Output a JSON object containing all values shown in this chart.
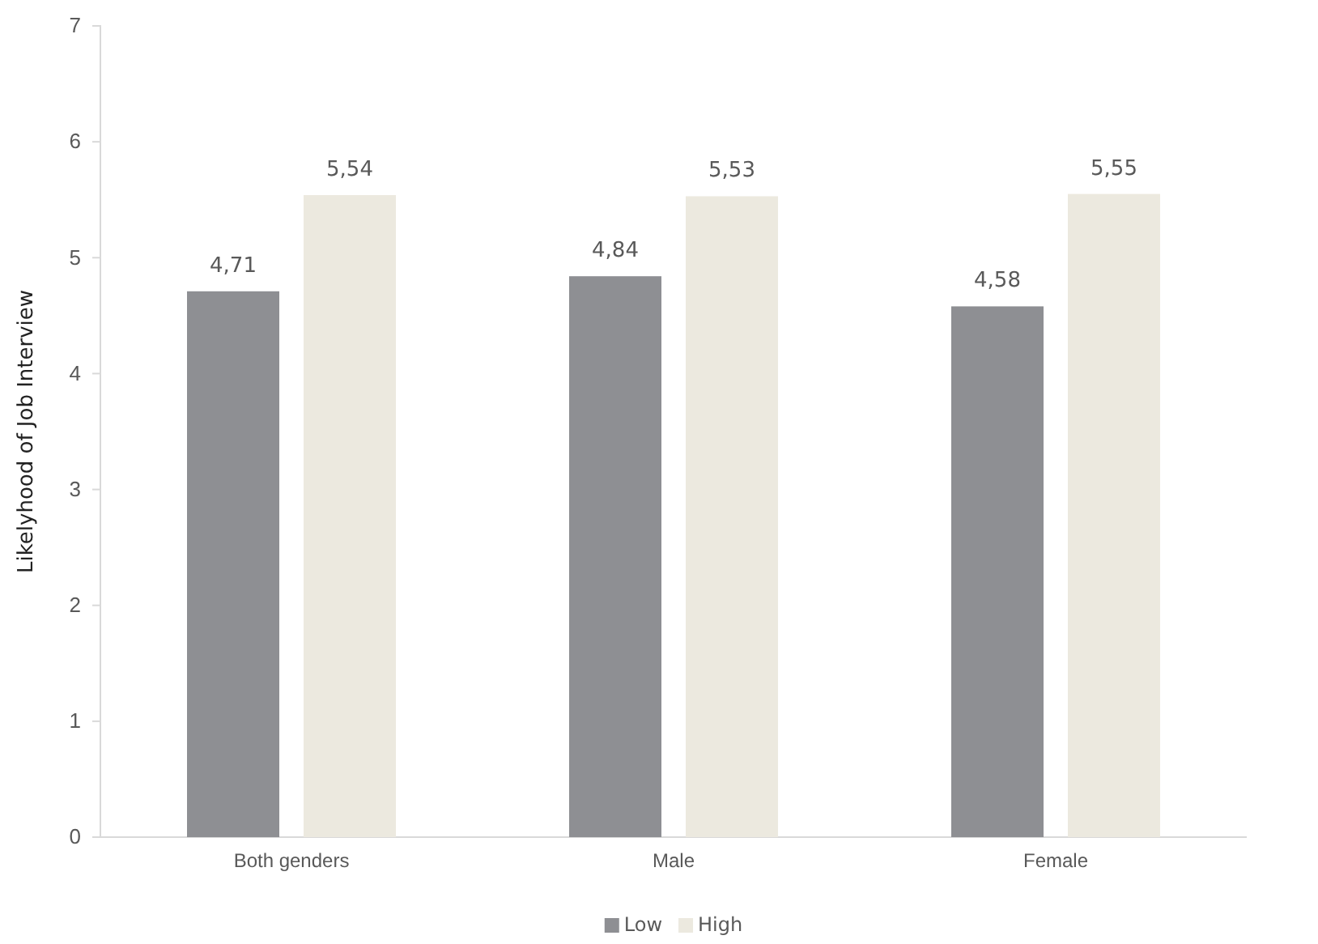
{
  "chart_data": {
    "type": "bar",
    "ylabel": "Likelyhood of Job Interview",
    "categories": [
      "Both genders",
      "Male",
      "Female"
    ],
    "series": [
      {
        "name": "Low",
        "color": "#8e8f93",
        "values": [
          4.71,
          4.84,
          4.58
        ],
        "value_labels": [
          "4,71",
          "4,84",
          "4,58"
        ]
      },
      {
        "name": "High",
        "color": "#ece9df",
        "values": [
          5.54,
          5.53,
          5.55
        ],
        "value_labels": [
          "5,54",
          "5,53",
          "5,55"
        ]
      }
    ],
    "ylim": [
      0,
      7
    ],
    "yticks": [
      0,
      1,
      2,
      3,
      4,
      5,
      6,
      7
    ],
    "grid": false,
    "legend": "bottom"
  }
}
